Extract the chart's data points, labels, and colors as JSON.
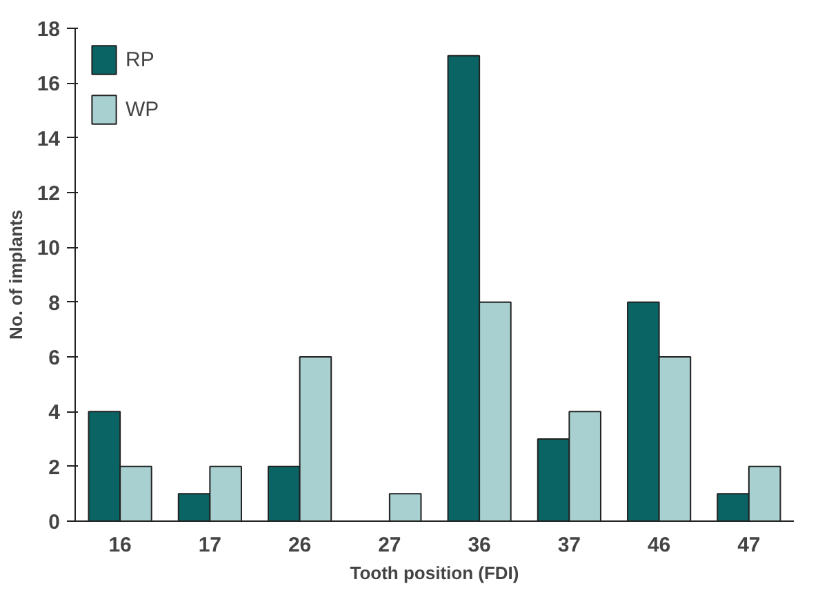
{
  "chart_data": {
    "type": "bar",
    "xlabel": "Tooth position (FDI)",
    "ylabel": "No. of implants",
    "categories": [
      "16",
      "17",
      "26",
      "27",
      "36",
      "37",
      "46",
      "47"
    ],
    "series": [
      {
        "name": "RP",
        "color": "#0b6464",
        "values": [
          4,
          1,
          2,
          0,
          17,
          3,
          8,
          1
        ]
      },
      {
        "name": "WP",
        "color": "#a9d0d0",
        "values": [
          2,
          2,
          6,
          1,
          8,
          4,
          6,
          2
        ]
      }
    ],
    "ylim": [
      0,
      18
    ],
    "yticks": [
      0,
      2,
      4,
      6,
      8,
      10,
      12,
      14,
      16,
      18
    ],
    "grid": false,
    "legend": "top left"
  }
}
